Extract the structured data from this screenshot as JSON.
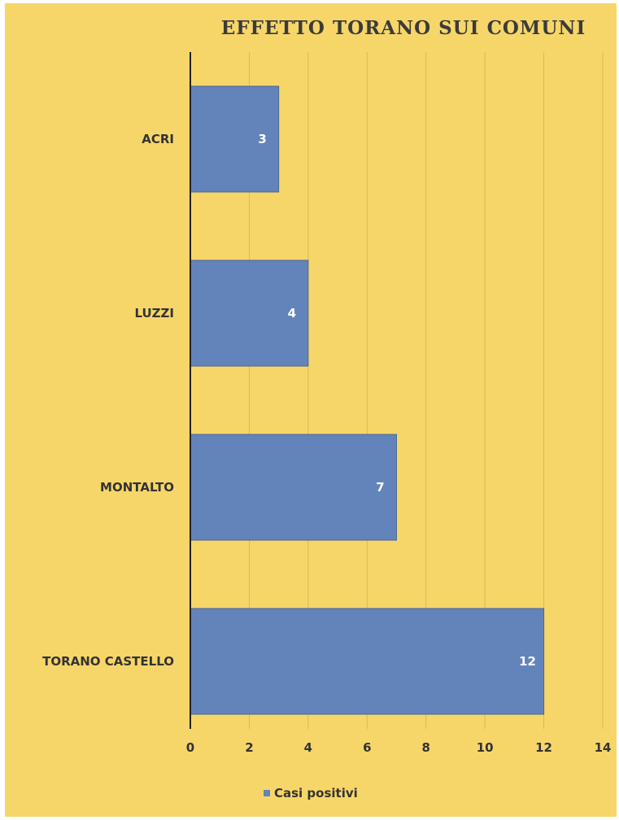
{
  "chart_data": {
    "type": "bar",
    "orientation": "horizontal",
    "title": "EFFETTO TORANO SUI COMUNI",
    "categories": [
      "ACRI",
      "LUZZI",
      "MONTALTO",
      "TORANO CASTELLO"
    ],
    "series": [
      {
        "name": "Casi positivi",
        "values": [
          3,
          4,
          7,
          12
        ]
      }
    ],
    "xlim": [
      0,
      14
    ],
    "xticks": [
      0,
      2,
      4,
      6,
      8,
      10,
      12,
      14
    ],
    "grid": "vertical",
    "legend": "bottom",
    "colors": {
      "background": "#f7d669",
      "bar": "#6383bb",
      "grid": "#d8b85a",
      "axis": "#222222"
    }
  }
}
